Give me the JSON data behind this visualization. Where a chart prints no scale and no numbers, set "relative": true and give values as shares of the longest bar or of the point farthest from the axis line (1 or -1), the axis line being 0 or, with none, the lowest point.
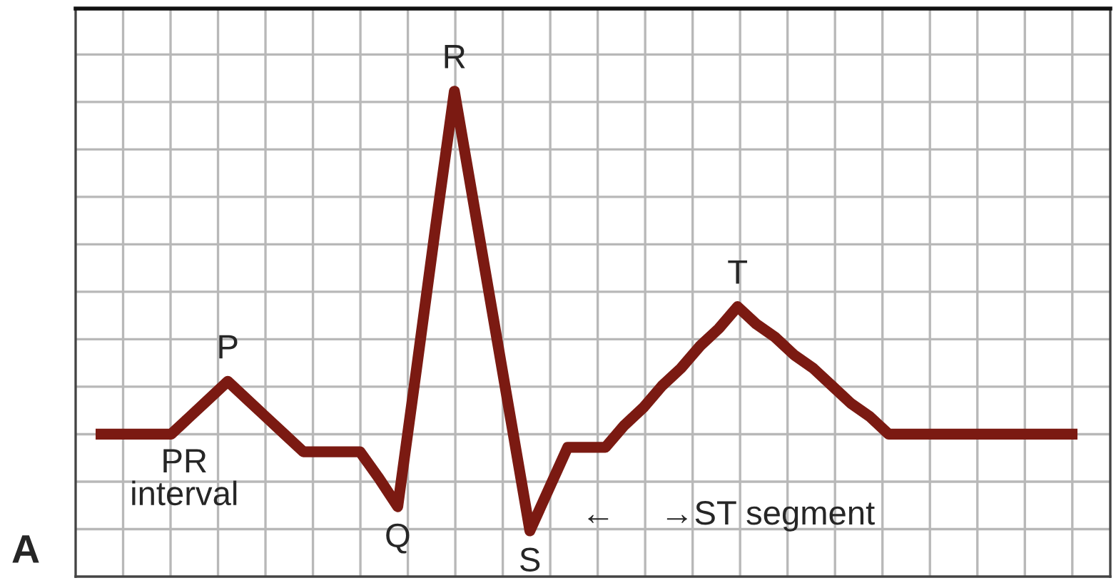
{
  "chart_data": {
    "type": "line",
    "relative": true,
    "grid": true,
    "marker": "none",
    "line_style": "solid",
    "categories": [
      null,
      null,
      null,
      null,
      null,
      null,
      null,
      null,
      null,
      null,
      null,
      null,
      null,
      null,
      null,
      null,
      null,
      null,
      null,
      null,
      null,
      null,
      null,
      null,
      null,
      null,
      null,
      null,
      null,
      null,
      null,
      null,
      null,
      null,
      null,
      null,
      null,
      null,
      null,
      null,
      null,
      null,
      null,
      null,
      null,
      null,
      null,
      null,
      null,
      null,
      null,
      null,
      null
    ],
    "series": [
      {
        "color": "#7b1a12",
        "values": [
          0.22,
          0.22,
          0.22,
          0.22,
          0.22,
          0.26,
          0.3,
          0.34,
          0.3,
          0.26,
          0.22,
          0.18,
          0.18,
          0.18,
          0.18,
          0.12,
          0.055,
          0.37,
          0.69,
          1,
          0.75,
          0.5,
          0.25,
          0,
          0.095,
          0.19,
          0.19,
          0.19,
          0.24,
          0.28,
          0.33,
          0.37,
          0.42,
          0.46,
          0.51,
          0.47,
          0.44,
          0.4,
          0.37,
          0.33,
          0.29,
          0.26,
          0.22,
          0.22,
          0.22,
          0.22,
          0.22,
          0.22,
          0.22,
          0.22,
          0.22,
          0.22,
          0.22
        ]
      }
    ],
    "annotations": [
      "P",
      "Q",
      "R",
      "S",
      "T",
      "PR\ninterval",
      "←",
      "→ST segment",
      "A"
    ]
  }
}
